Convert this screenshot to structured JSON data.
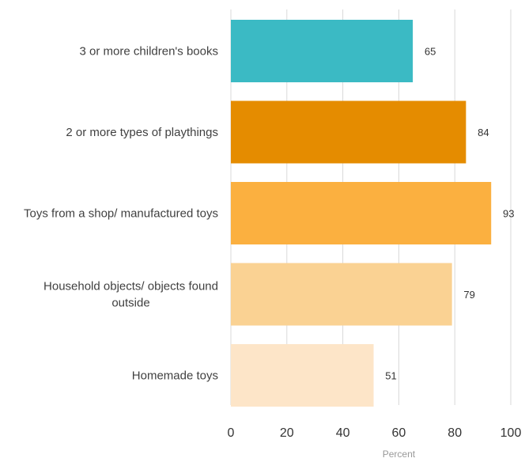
{
  "chart_data": {
    "type": "bar",
    "orientation": "horizontal",
    "categories": [
      "3 or more children's books",
      "2  or more types of playthings",
      "Toys from a shop/ manufactured toys",
      "Household objects/ objects found outside",
      "Homemade toys"
    ],
    "values": [
      65,
      84,
      93,
      79,
      51
    ],
    "bar_colors": [
      "#3bbac4",
      "#e58c00",
      "#fbb040",
      "#fad293",
      "#fde5c8"
    ],
    "xlabel": "Percent",
    "ylabel": "",
    "xlim": [
      0,
      100
    ],
    "x_ticks": [
      "0",
      "20",
      "40",
      "60",
      "80",
      "100"
    ],
    "grid": true,
    "legend": "none"
  }
}
